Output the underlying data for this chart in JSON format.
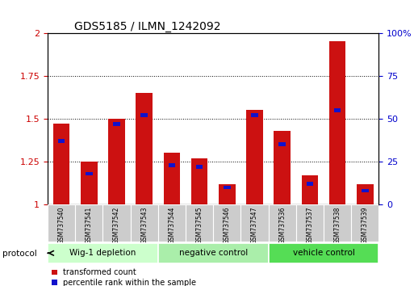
{
  "title": "GDS5185 / ILMN_1242092",
  "samples": [
    "GSM737540",
    "GSM737541",
    "GSM737542",
    "GSM737543",
    "GSM737544",
    "GSM737545",
    "GSM737546",
    "GSM737547",
    "GSM737536",
    "GSM737537",
    "GSM737538",
    "GSM737539"
  ],
  "red_values": [
    1.47,
    1.25,
    1.5,
    1.65,
    1.3,
    1.27,
    1.12,
    1.55,
    1.43,
    1.17,
    1.95,
    1.12
  ],
  "blue_values": [
    37,
    18,
    47,
    52,
    23,
    22,
    10,
    52,
    35,
    12,
    55,
    8
  ],
  "groups": [
    {
      "label": "Wig-1 depletion",
      "start": 0,
      "end": 4
    },
    {
      "label": "negative control",
      "start": 4,
      "end": 8
    },
    {
      "label": "vehicle control",
      "start": 8,
      "end": 12
    }
  ],
  "group_colors": [
    "#ccffcc",
    "#aaeeaa",
    "#55dd55"
  ],
  "ylim_left": [
    1.0,
    2.0
  ],
  "ylim_right": [
    0,
    100
  ],
  "yticks_left": [
    1.0,
    1.25,
    1.5,
    1.75,
    2.0
  ],
  "yticks_right": [
    0,
    25,
    50,
    75,
    100
  ],
  "ytick_labels_left": [
    "1",
    "1.25",
    "1.5",
    "1.75",
    "2"
  ],
  "ytick_labels_right": [
    "0",
    "25",
    "50",
    "75",
    "100%"
  ],
  "bar_color_red": "#cc1111",
  "bar_color_blue": "#1111cc",
  "bar_width": 0.6,
  "blue_bar_height": 0.022,
  "blue_bar_width": 0.25,
  "background_color": "#ffffff",
  "sample_bg": "#cccccc",
  "left_color": "#cc0000",
  "right_color": "#0000cc"
}
